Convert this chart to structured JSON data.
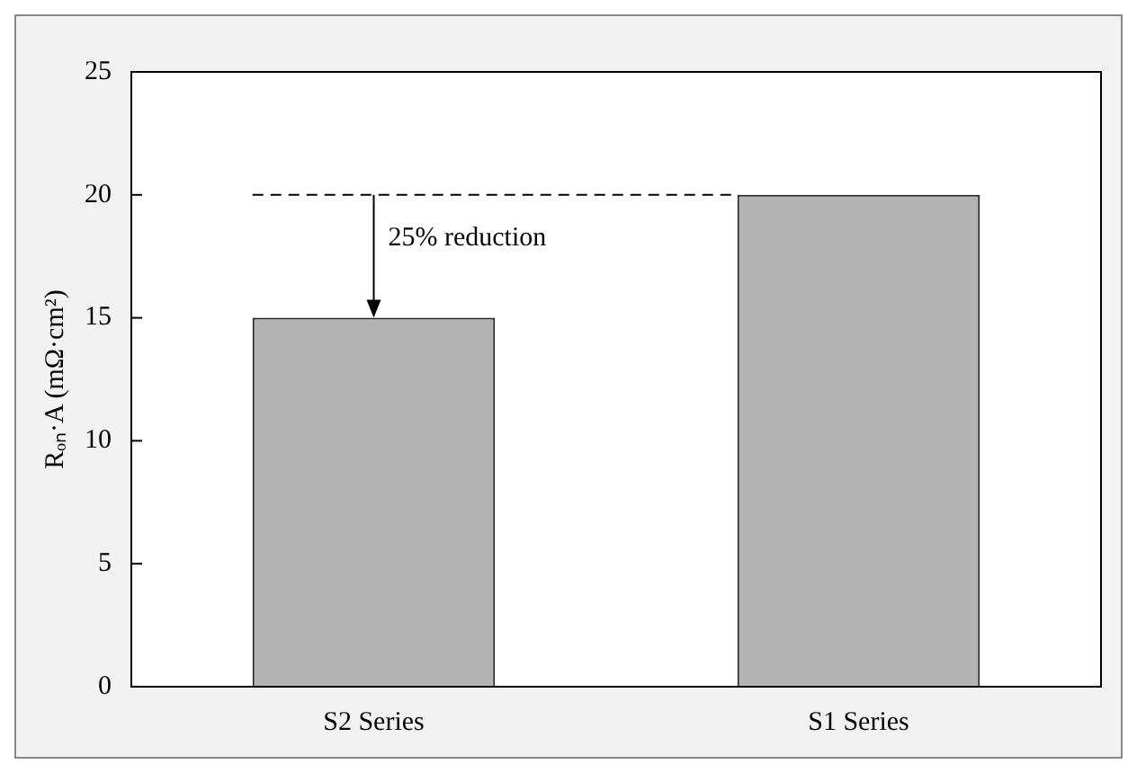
{
  "chart_data": {
    "type": "bar",
    "ylabel": "Rₒₙ·A (mΩ·cm²)",
    "categories": [
      "S2 Series",
      "S1 Series"
    ],
    "values": [
      15,
      20
    ],
    "color": "#b3b3b3",
    "ylim": [
      0,
      25
    ],
    "yticks": [
      0,
      5,
      10,
      15,
      20,
      25
    ],
    "grid": false,
    "legend": false,
    "ref_lines": [
      {
        "axis": "y",
        "value": 20,
        "line_style": "dashed",
        "color": "#000000"
      }
    ],
    "annotations": [
      {
        "text": "25% reduction",
        "x": "S2 Series",
        "y": 20
      }
    ]
  }
}
